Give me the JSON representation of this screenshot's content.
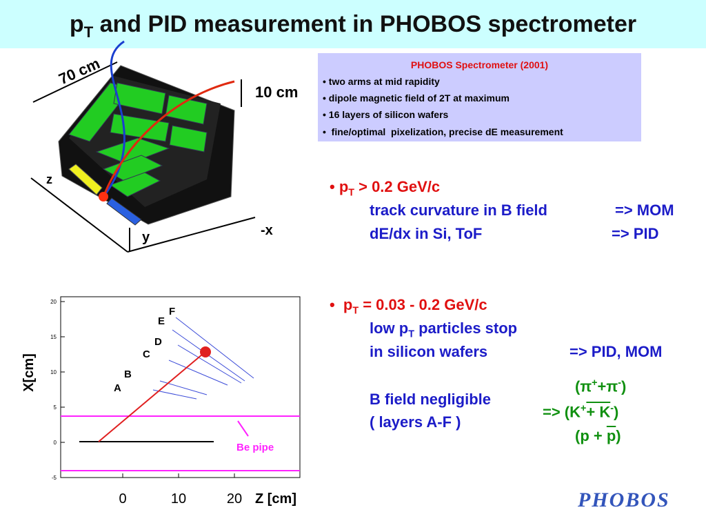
{
  "title": {
    "main": "p",
    "sub": "T",
    "rest": " and PID measurement in PHOBOS spectrometer"
  },
  "infobox": {
    "title": "PHOBOS Spectrometer (2001)",
    "items": [
      "• two arms at mid rapidity",
      "• dipole magnetic field of 2T at maximum",
      "• 16 layers of silicon wafers",
      "•  fine/optimal  pixelization, precise dE measurement"
    ]
  },
  "diagram": {
    "length": "70 cm",
    "height": "10 cm",
    "z": "z",
    "y": "y",
    "x": "-x"
  },
  "bullet1": {
    "lead": "• p",
    "sub": "T",
    "rest": " > 0.2 GeV/c",
    "lines": [
      [
        "track curvature in B field",
        "=> MOM"
      ],
      [
        "dE/dx in Si, ToF",
        "=> PID"
      ]
    ]
  },
  "bullet2": {
    "lead": "•  p",
    "sub": "T",
    "rest": " = 0.03 - 0.2 GeV/c",
    "line1": [
      "low p",
      "T",
      " particles stop"
    ],
    "line2": [
      "in silicon wafers",
      "=> PID, MOM"
    ],
    "line3": "B field negligible",
    "line4": "( layers A-F )"
  },
  "particles": [
    [
      "(π",
      "+",
      "+π",
      "-",
      ")"
    ],
    [
      "=> (K",
      "+",
      "+ K",
      "-",
      ")"
    ],
    [
      "(p + ",
      "p",
      ")"
    ]
  ],
  "plot": {
    "ylabel": "X[cm]",
    "xlabel": "Z [cm]",
    "yticks": [
      20,
      15,
      10,
      5,
      0,
      -5
    ],
    "xticks": [
      0,
      10,
      20
    ],
    "layers": [
      "A",
      "B",
      "C",
      "D",
      "E",
      "F"
    ],
    "annotation": "Be pipe"
  },
  "logo": "PHOBOS"
}
